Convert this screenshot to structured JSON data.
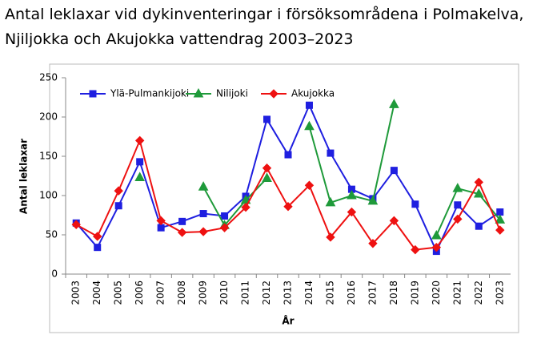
{
  "chart_data": {
    "type": "line",
    "title": [
      "Antal leklaxar vid dykinventeringar i försöksområdena i Polmakelva,",
      "Njiljokka och Akujokka vattendrag 2003–2023"
    ],
    "x_label": "År",
    "y_label": "Antal leklaxar",
    "categories": [
      "2003",
      "2004",
      "2005",
      "2006",
      "2007",
      "2008",
      "2009",
      "2010",
      "2011",
      "2012",
      "2013",
      "2014",
      "2015",
      "2016",
      "2017",
      "2018",
      "2019",
      "2020",
      "2021",
      "2022",
      "2023"
    ],
    "series": [
      {
        "name": "Ylä-Pulmankijoki",
        "color": "#1f1fe0",
        "marker": "square",
        "values": [
          65,
          34,
          87,
          143,
          59,
          67,
          77,
          74,
          99,
          197,
          152,
          215,
          154,
          108,
          96,
          132,
          89,
          29,
          88,
          61,
          79
        ]
      },
      {
        "name": "Nilijoki",
        "color": "#1f9a3a",
        "marker": "triangle",
        "values": [
          null,
          null,
          null,
          123,
          null,
          null,
          111,
          62,
          94,
          122,
          null,
          188,
          91,
          100,
          93,
          216,
          null,
          49,
          109,
          102,
          69
        ]
      },
      {
        "name": "Akujokka",
        "color": "#ee1111",
        "marker": "diamond",
        "values": [
          63,
          48,
          106,
          170,
          68,
          53,
          54,
          59,
          85,
          135,
          86,
          113,
          47,
          79,
          39,
          68,
          31,
          34,
          70,
          117,
          56
        ]
      }
    ],
    "ylim": [
      0,
      250
    ],
    "yticks": [
      0,
      50,
      100,
      150,
      200,
      250
    ],
    "grid": false,
    "legend": "top"
  }
}
